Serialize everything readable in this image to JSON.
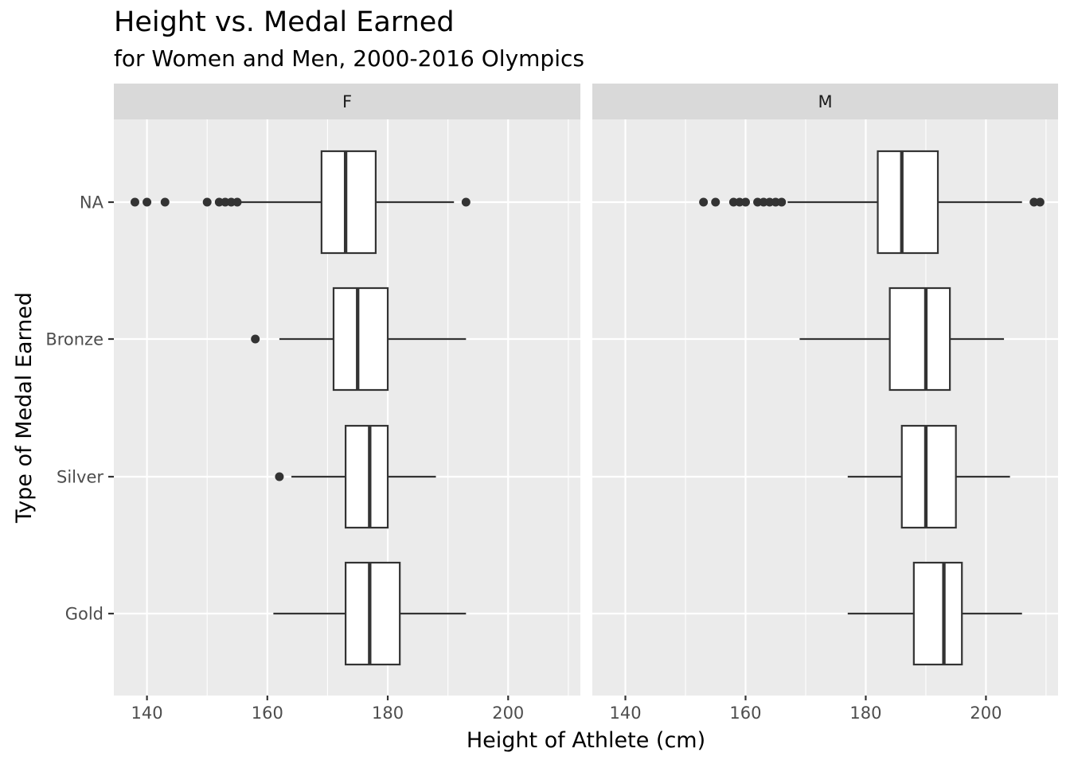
{
  "chart_data": {
    "type": "boxplot",
    "title": "Height vs. Medal Earned",
    "subtitle": "for Women and Men, 2000-2016 Olympics",
    "xlabel": "Height of Athlete (cm)",
    "ylabel": "Type of Medal Earned",
    "xlim": [
      134.5,
      212
    ],
    "xticks": [
      140,
      160,
      180,
      200
    ],
    "categories": [
      "NA",
      "Bronze",
      "Silver",
      "Gold"
    ],
    "grid": true,
    "facets": [
      {
        "label": "F",
        "boxes": [
          {
            "category": "NA",
            "whisker_low": 155.5,
            "q1": 169,
            "median": 173,
            "q3": 178,
            "whisker_high": 191,
            "outliers": [
              138,
              140,
              143,
              150,
              152,
              153,
              154,
              155,
              193
            ]
          },
          {
            "category": "Bronze",
            "whisker_low": 162,
            "q1": 171,
            "median": 175,
            "q3": 180,
            "whisker_high": 193,
            "outliers": [
              158
            ]
          },
          {
            "category": "Silver",
            "whisker_low": 164,
            "q1": 173,
            "median": 177,
            "q3": 180,
            "whisker_high": 188,
            "outliers": [
              162
            ]
          },
          {
            "category": "Gold",
            "whisker_low": 161,
            "q1": 173,
            "median": 177,
            "q3": 182,
            "whisker_high": 193,
            "outliers": []
          }
        ]
      },
      {
        "label": "M",
        "boxes": [
          {
            "category": "NA",
            "whisker_low": 167,
            "q1": 182,
            "median": 186,
            "q3": 192,
            "whisker_high": 206,
            "outliers": [
              153,
              155,
              158,
              159,
              160,
              162,
              163,
              164,
              165,
              166,
              208,
              209
            ]
          },
          {
            "category": "Bronze",
            "whisker_low": 169,
            "q1": 184,
            "median": 190,
            "q3": 194,
            "whisker_high": 203,
            "outliers": []
          },
          {
            "category": "Silver",
            "whisker_low": 177,
            "q1": 186,
            "median": 190,
            "q3": 195,
            "whisker_high": 204,
            "outliers": []
          },
          {
            "category": "Gold",
            "whisker_low": 177,
            "q1": 188,
            "median": 193,
            "q3": 196,
            "whisker_high": 206,
            "outliers": []
          }
        ]
      }
    ],
    "colors": {
      "panel_bg": "#ebebeb",
      "strip_bg": "#d9d9d9",
      "grid": "#ffffff",
      "box_fill": "#ffffff",
      "box_line": "#333333",
      "point": "#333333"
    }
  }
}
